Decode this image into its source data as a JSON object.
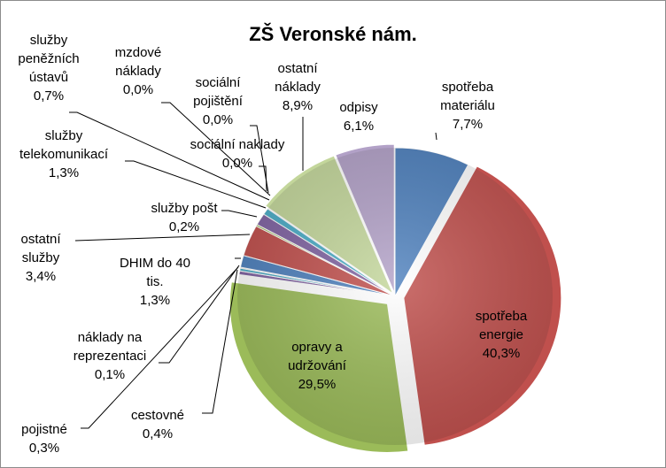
{
  "chart_data": {
    "type": "pie",
    "title": "ZŠ Veronské nám.",
    "slices": [
      {
        "label": "spotřeba materiálu",
        "value": 7.7,
        "display": "7,7%",
        "color": "#4f81bd"
      },
      {
        "label": "spotřeba energie",
        "value": 40.3,
        "display": "40,3%",
        "color": "#c0504d"
      },
      {
        "label": "opravy a udržování",
        "value": 29.5,
        "display": "29,5%",
        "color": "#9bbb59"
      },
      {
        "label": "cestovné",
        "value": 0.4,
        "display": "0,4%",
        "color": "#8064a2"
      },
      {
        "label": "pojistné",
        "value": 0.3,
        "display": "0,3%",
        "color": "#4bacc6"
      },
      {
        "label": "náklady na reprezentaci",
        "value": 0.1,
        "display": "0,1%",
        "color": "#f79646"
      },
      {
        "label": "DHIM do 40 tis.",
        "value": 1.3,
        "display": "1,3%",
        "color": "#4f81bd"
      },
      {
        "label": "ostatní služby",
        "value": 3.4,
        "display": "3,4%",
        "color": "#c0504d"
      },
      {
        "label": "služby pošt",
        "value": 0.2,
        "display": "0,2%",
        "color": "#9bbb59"
      },
      {
        "label": "služby telekomunikací",
        "value": 1.3,
        "display": "1,3%",
        "color": "#8064a2"
      },
      {
        "label": "služby peněžních ústavů",
        "value": 0.7,
        "display": "0,7%",
        "color": "#4bacc6"
      },
      {
        "label": "mzdové náklady",
        "value": 0.0,
        "display": "0,0%",
        "color": "#f79646"
      },
      {
        "label": "sociální pojištění",
        "value": 0.0,
        "display": "0,0%",
        "color": "#4f81bd"
      },
      {
        "label": "sociální naklady",
        "value": 0.0,
        "display": "0,0%",
        "color": "#c0504d"
      },
      {
        "label": "ostatní náklady",
        "value": 8.9,
        "display": "8,9%",
        "color": "#c3d69b"
      },
      {
        "label": "odpisy",
        "value": 6.1,
        "display": "6,1%",
        "color": "#b2a1c7"
      }
    ],
    "legend": "none"
  }
}
